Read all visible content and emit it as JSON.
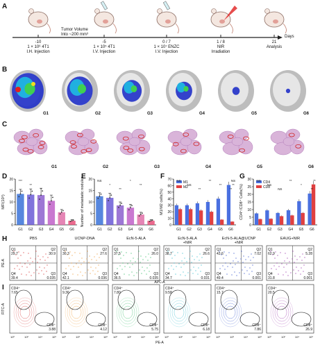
{
  "panel_letters": [
    "A",
    "B",
    "C",
    "D",
    "E",
    "F",
    "G",
    "H",
    "I"
  ],
  "timeline": {
    "tumor_volume_label": "Tumor Volume\nInto ~200 mm³",
    "days_label": "Days",
    "events": [
      {
        "day": "-10",
        "text": "1 × 10⁶ 4T1\nI.H. Injection"
      },
      {
        "day": "-5",
        "text": "1 × 10⁵ 4T1\nI.V. Injection"
      },
      {
        "day": "0 / 7",
        "text": "1 × 10⁷ ENZC\nI.V. Injection"
      },
      {
        "day": "1 / 8",
        "text": "NIR\nIrradiation"
      },
      {
        "day": "21",
        "text": "Analysis"
      }
    ]
  },
  "groups": [
    "G1",
    "G2",
    "G3",
    "G4",
    "G5",
    "G6"
  ],
  "flow_groups": [
    "PBS",
    "UCNP-DNA",
    "EcN-5-ALA",
    "EcN-5-ALA\n+NIR",
    "EcN-5-ALA@UCNP\n+NIR",
    "EAUG+NIR"
  ],
  "flow_H": {
    "x_axis": "APC-A",
    "y_axis": "PE-A",
    "quadrants": [
      {
        "q1": "29.7",
        "q2": "30.9",
        "q3": "0.035",
        "q4": "39.4"
      },
      {
        "q1": "30.3",
        "q2": "27.6",
        "q3": "0.036",
        "q4": "42.1"
      },
      {
        "q1": "37.5",
        "q2": "26.0",
        "q3": "0.035",
        "q4": "36.5"
      },
      {
        "q1": "38.7",
        "q2": "26.6",
        "q3": "0.031",
        "q4": "34.7"
      },
      {
        "q1": "43.6",
        "q2": "7.02",
        "q3": "0.001",
        "q4": "49.4"
      },
      {
        "q1": "62.9",
        "q2": "5.28",
        "q3": "0.001",
        "q4": "31.8"
      }
    ],
    "labels": {
      "q1": "Q1",
      "q2": "Q2",
      "q3": "Q3",
      "q4": "Q4"
    },
    "colors": [
      "#d94040",
      "#f0a040",
      "#40c070",
      "#40c0d0",
      "#4060d0",
      "#a040b0"
    ]
  },
  "flow_I": {
    "x_axis": "PE-A",
    "y_axis": "FITC-A",
    "cd4_label": "CD4⁺",
    "cd8_label": "CD8⁺",
    "values": [
      {
        "cd4": "7.65",
        "cd8": "3.88"
      },
      {
        "cd4": "9.36",
        "cd8": "4.12"
      },
      {
        "cd4": "7.80",
        "cd8": "5.75"
      },
      {
        "cd4": "9.58",
        "cd8": "6.18"
      },
      {
        "cd4": "15.7",
        "cd8": "7.86"
      },
      {
        "cd4": "20.5",
        "cd8": "26.9"
      }
    ],
    "ticks": [
      "10⁰",
      "10²",
      "10⁴",
      "10⁶"
    ]
  },
  "chart_data": [
    {
      "type": "bar",
      "panel": "D",
      "categories": [
        "G1",
        "G2",
        "G3",
        "G4",
        "G5",
        "G6"
      ],
      "values": [
        13.5,
        13.2,
        13.0,
        10.5,
        5.5,
        1.8
      ],
      "errors": [
        2.0,
        2.5,
        3.0,
        2.5,
        1.2,
        0.5
      ],
      "ylabel": "MFI(10⁵)",
      "ylim": [
        0,
        20
      ],
      "yticks": [
        0,
        5,
        10,
        15,
        20
      ],
      "significance": [
        "***",
        "**",
        "*"
      ],
      "colors": [
        "#3a72d8",
        "#6a5bd6",
        "#8c5fce",
        "#c060c8",
        "#e070a8",
        "#e8507a"
      ]
    },
    {
      "type": "bar",
      "panel": "E",
      "categories": [
        "G1",
        "G2",
        "G3",
        "G4",
        "G5",
        "G6"
      ],
      "values": [
        12.5,
        11.8,
        8.5,
        7.5,
        4.5,
        1.8
      ],
      "errors": [
        1.5,
        2.0,
        1.5,
        1.5,
        1.0,
        0.5
      ],
      "ylabel": "Number of metastatic nodules",
      "ylim": [
        0,
        20
      ],
      "yticks": [
        0,
        5,
        10,
        15,
        20
      ],
      "significance": [
        "NS",
        "*",
        "**",
        "*",
        "**"
      ],
      "colors": [
        "#3a72d8",
        "#6a5bd6",
        "#8c5fce",
        "#c060c8",
        "#e070a8",
        "#e8507a"
      ]
    },
    {
      "type": "bar",
      "panel": "F",
      "categories": [
        "G1",
        "G2",
        "G3",
        "G4",
        "G5",
        "G6"
      ],
      "series": [
        {
          "name": "M1",
          "values": [
            30,
            30,
            33,
            35,
            40,
            61
          ],
          "color": "#4a70e0"
        },
        {
          "name": "M2",
          "values": [
            24,
            24,
            22,
            20,
            8,
            5
          ],
          "color": "#e04040"
        }
      ],
      "ylabel": "M1/M2 cells(%)",
      "ylim": [
        0,
        70
      ],
      "yticks": [
        0,
        10,
        20,
        30,
        40,
        50,
        60,
        70
      ],
      "significance": [
        "NS",
        "NS",
        "**",
        "**",
        "**",
        "**",
        "NS",
        "**"
      ]
    },
    {
      "type": "bar",
      "panel": "G",
      "categories": [
        "G1",
        "G2",
        "G3",
        "G4",
        "G5",
        "G6"
      ],
      "series": [
        {
          "name": "CD4",
          "values": [
            7.5,
            9.5,
            7.8,
            9.6,
            15.5,
            20.5
          ],
          "color": "#4a70e0"
        },
        {
          "name": "CD8",
          "values": [
            3.8,
            4.0,
            5.7,
            6.2,
            7.8,
            26.5
          ],
          "color": "#e04040"
        }
      ],
      "ylabel": "CD4⁺/CD8⁺ Cells(%)",
      "ylim": [
        0,
        30
      ],
      "yticks": [
        0,
        5,
        10,
        15,
        20,
        25,
        30
      ],
      "significance": [
        "NS",
        "NS",
        "NS",
        "**",
        "*",
        "**",
        "**"
      ]
    }
  ]
}
